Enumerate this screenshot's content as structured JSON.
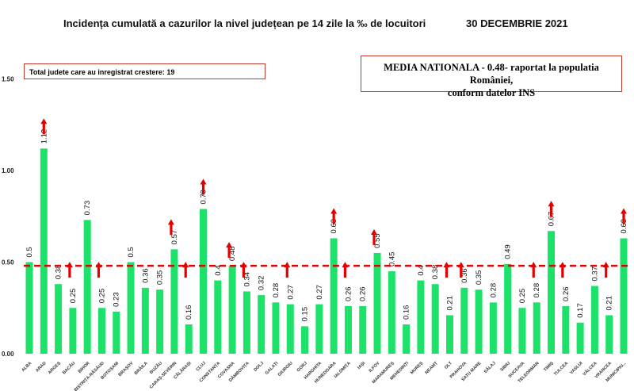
{
  "header": {
    "title": "Incidența cumulată a cazurilor la nivel județean pe 14 zile la ‰ de locuitori",
    "date": "30 DECEMBRIE 2021"
  },
  "annotations": {
    "total_increase": "Total judete care au inregistrat crestere: 19",
    "national_line1": "MEDIA NATIONALA - 0.48-  raportat la populatia României,",
    "national_line2": "conform datelor INS"
  },
  "chart_data": {
    "type": "bar",
    "title": "Incidența cumulată a cazurilor la nivel județean pe 14 zile la ‰ de locuitori",
    "ylim": [
      0,
      1.5
    ],
    "yticks": [
      "0.00",
      "0.50",
      "1.00",
      "1.50"
    ],
    "reference_line": {
      "value": 0.48,
      "color": "#e00000",
      "style": "dashed"
    },
    "bar_color": "#1de26a",
    "arrow_color": "#e00000",
    "categories": [
      "ALBA",
      "ARAD",
      "ARGEȘ",
      "BACĂU",
      "BIHOR",
      "BISTRIȚA-NĂSĂUD",
      "BOTOȘANI",
      "BRAȘOV",
      "BRĂILA",
      "BUZĂU",
      "CARAȘ-SEVERIN",
      "CĂLĂRAȘI",
      "CLUJ",
      "CONSTANȚA",
      "COVASNA",
      "DÂMBOVIȚA",
      "DOLJ",
      "GALAȚI",
      "GIURGIU",
      "GORJ",
      "HARGHITA",
      "HUNEDOARA",
      "IALOMIȚA",
      "IAȘI",
      "ILFOV",
      "MARAMUREȘ",
      "MEHEDINȚI",
      "MUREȘ",
      "NEAMȚ",
      "OLT",
      "PRAHOVA",
      "SATU MARE",
      "SĂLAJ",
      "SIBIU",
      "SUCEAVA",
      "TELEORMAN",
      "TIMIȘ",
      "TULCEA",
      "VASLUI",
      "VÂLCEA",
      "VRANCEA",
      "MUNICIPIU..."
    ],
    "values": [
      0.5,
      1.12,
      0.38,
      0.25,
      0.73,
      0.25,
      0.23,
      0.5,
      0.36,
      0.35,
      0.57,
      0.16,
      0.79,
      0.4,
      0.48,
      0.34,
      0.32,
      0.28,
      0.27,
      0.15,
      0.27,
      0.63,
      0.26,
      0.26,
      0.55,
      0.45,
      0.16,
      0.4,
      0.38,
      0.21,
      0.36,
      0.35,
      0.28,
      0.49,
      0.25,
      0.28,
      0.67,
      0.26,
      0.17,
      0.37,
      0.21,
      0.63
    ],
    "increase": [
      false,
      true,
      false,
      true,
      false,
      true,
      false,
      false,
      false,
      false,
      true,
      true,
      true,
      false,
      true,
      true,
      false,
      false,
      true,
      false,
      false,
      true,
      true,
      false,
      true,
      false,
      false,
      false,
      false,
      true,
      true,
      false,
      false,
      false,
      false,
      true,
      true,
      true,
      false,
      false,
      true,
      true
    ]
  }
}
